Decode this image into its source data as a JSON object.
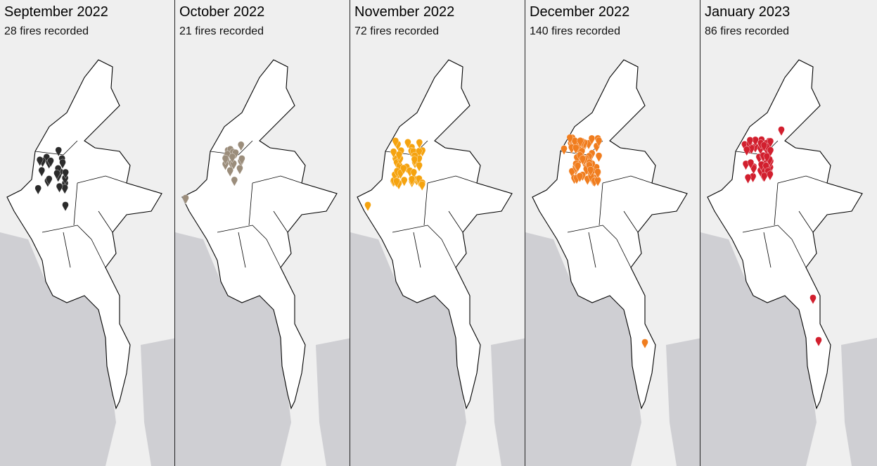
{
  "panels": [
    {
      "title": "September 2022",
      "subtitle": "28 fires recorded",
      "color": "#2b2b2b"
    },
    {
      "title": "October 2022",
      "subtitle": "21 fires recorded",
      "color": "#9b8d7b"
    },
    {
      "title": "November 2022",
      "subtitle": "72 fires recorded",
      "color": "#f5a30f"
    },
    {
      "title": "December 2022",
      "subtitle": "140 fires recorded",
      "color": "#f07d1e"
    },
    {
      "title": "January 2023",
      "subtitle": "86 fires recorded",
      "color": "#d21f2e"
    }
  ]
}
